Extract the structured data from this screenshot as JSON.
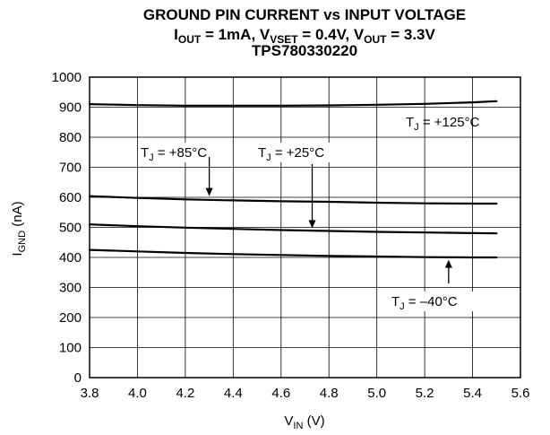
{
  "chart_data": {
    "type": "line",
    "title": "GROUND PIN CURRENT vs INPUT VOLTAGE",
    "subtitle": {
      "i_out_main": "I",
      "i_out_sub": "OUT",
      "i_out_val": " = 1mA, ",
      "v_vset_main": "V",
      "v_vset_sub": "VSET",
      "v_vset_val": " = 0.4V, ",
      "v_out_main": "V",
      "v_out_sub": "OUT",
      "v_out_val": " = 3.3V"
    },
    "part_number": "TPS780330220",
    "xlabel": {
      "main": "V",
      "sub": "IN",
      "unit": " (V)"
    },
    "ylabel": {
      "main": "I",
      "sub": "GND",
      "unit": " (nA)"
    },
    "xlim": [
      3.8,
      5.6
    ],
    "ylim": [
      0,
      1000
    ],
    "x_ticks": [
      "3.8",
      "4.0",
      "4.2",
      "4.4",
      "4.6",
      "4.8",
      "5.0",
      "5.2",
      "5.4",
      "5.6"
    ],
    "y_ticks": [
      "0",
      "100",
      "200",
      "300",
      "400",
      "500",
      "600",
      "700",
      "800",
      "900",
      "1000"
    ],
    "grid": true,
    "series": [
      {
        "name": "TJ = +125°C",
        "x": [
          3.8,
          4.0,
          4.2,
          4.4,
          4.6,
          4.8,
          5.0,
          5.2,
          5.4,
          5.5
        ],
        "y": [
          910,
          907,
          905,
          905,
          905,
          906,
          908,
          911,
          916,
          920
        ]
      },
      {
        "name": "TJ = +85°C",
        "x": [
          3.8,
          4.0,
          4.2,
          4.4,
          4.6,
          4.8,
          5.0,
          5.2,
          5.4,
          5.5
        ],
        "y": [
          604,
          598,
          593,
          590,
          587,
          585,
          582,
          580,
          579,
          579
        ]
      },
      {
        "name": "TJ = +25°C",
        "x": [
          3.8,
          4.0,
          4.2,
          4.4,
          4.6,
          4.8,
          5.0,
          5.2,
          5.4,
          5.5
        ],
        "y": [
          510,
          504,
          499,
          495,
          491,
          488,
          485,
          483,
          481,
          480
        ]
      },
      {
        "name": "TJ = –40°C",
        "x": [
          3.8,
          4.0,
          4.2,
          4.4,
          4.6,
          4.8,
          5.0,
          5.2,
          5.4,
          5.5
        ],
        "y": [
          425,
          420,
          415,
          411,
          408,
          405,
          403,
          401,
          400,
          400
        ]
      }
    ],
    "annotations": [
      {
        "main": "T",
        "sub": "J",
        "rest": " = +125°C",
        "arrow": false
      },
      {
        "main": "T",
        "sub": "J",
        "rest": " = +85°C",
        "arrow": true,
        "arrow_x": 4.3,
        "arrow_y": 595
      },
      {
        "main": "T",
        "sub": "J",
        "rest": " = +25°C",
        "arrow": true,
        "arrow_x": 4.73,
        "arrow_y": 488
      },
      {
        "main": "T",
        "sub": "J",
        "rest": " = –40°C",
        "arrow": true,
        "arrow_x": 5.3,
        "arrow_y": 401
      }
    ]
  }
}
